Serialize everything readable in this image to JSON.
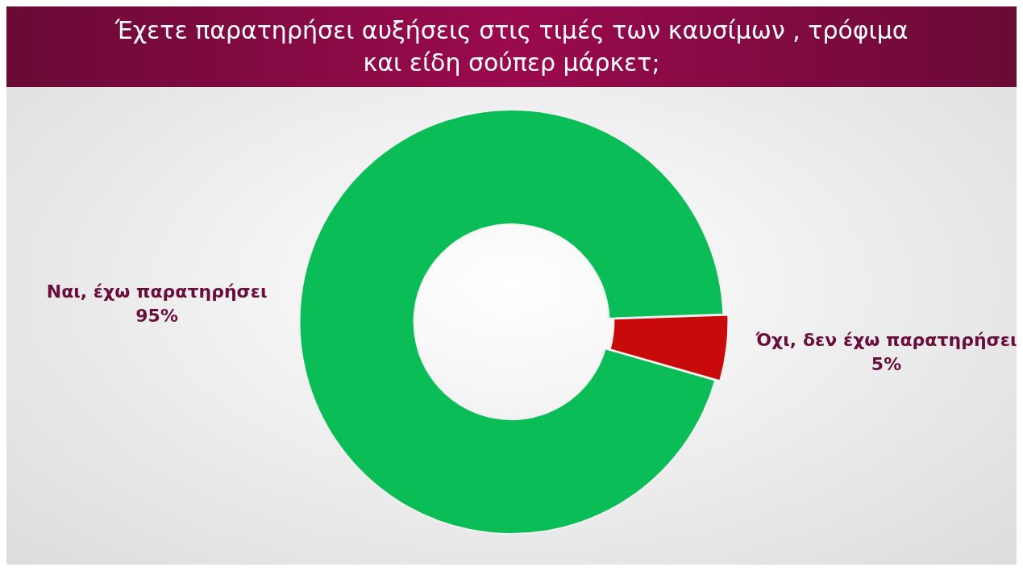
{
  "chart_data": {
    "type": "donut",
    "title": "Έχετε παρατηρήσει αυξήσεις στις τιμές των καυσίμων , τρόφιμα και είδη σούπερ μάρκετ;",
    "categories": [
      "Ναι, έχω παρατηρήσει",
      "Όχι, δεν έχω παρατηρήσει"
    ],
    "values": [
      95,
      5
    ],
    "value_labels": [
      "95%",
      "5%"
    ],
    "colors": [
      "#0bbd56",
      "#c80a0a"
    ],
    "legend": false
  }
}
